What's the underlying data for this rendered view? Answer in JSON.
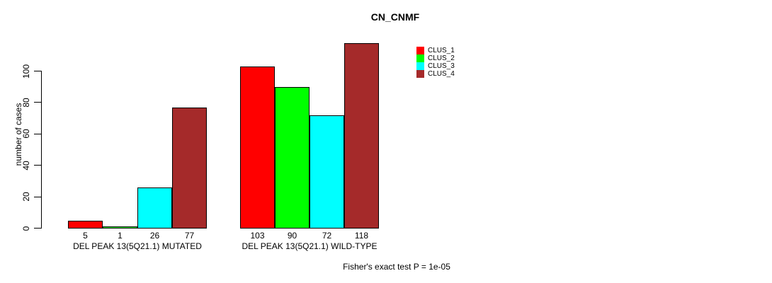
{
  "chart_data": {
    "type": "bar",
    "title": "CN_CNMF",
    "ylabel": "number of cases",
    "xlabel": "",
    "ylim": [
      0,
      100
    ],
    "yticks": [
      0,
      20,
      40,
      60,
      80,
      100
    ],
    "grid": false,
    "legend_position": "top-right",
    "bar_values_shown_below_bars": true,
    "categories": [
      "DEL PEAK 13(5Q21.1) MUTATED",
      "DEL PEAK 13(5Q21.1) WILD-TYPE"
    ],
    "series": [
      {
        "name": "CLUS_1",
        "color": "#ff0000",
        "values": [
          5,
          103
        ]
      },
      {
        "name": "CLUS_2",
        "color": "#00ff00",
        "values": [
          1,
          90
        ]
      },
      {
        "name": "CLUS_3",
        "color": "#00ffff",
        "values": [
          26,
          72
        ]
      },
      {
        "name": "CLUS_4",
        "color": "#a52a2a",
        "values": [
          77,
          118
        ]
      }
    ],
    "annotation": "Fisher's exact test P = 1e-05"
  }
}
